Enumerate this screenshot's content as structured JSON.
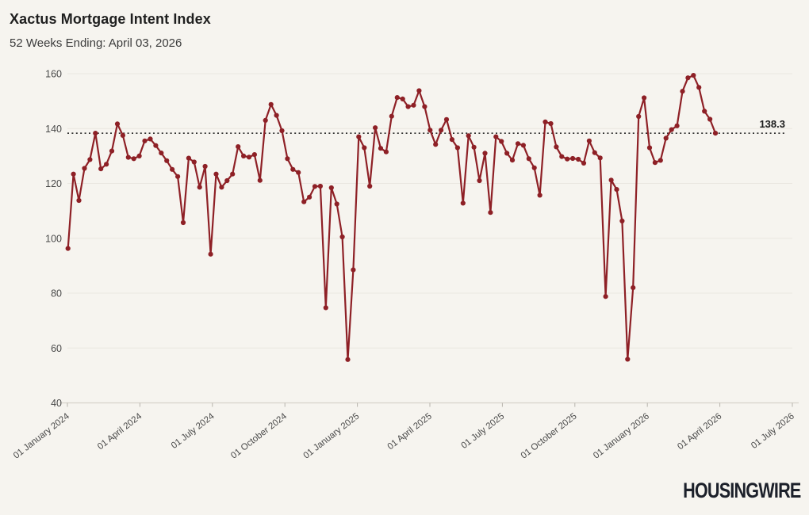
{
  "header": {
    "title": "Xactus Mortgage Intent Index",
    "subtitle": "52 Weeks Ending: April 03, 2026"
  },
  "footer": {
    "brand": "HOUSINGWIRE"
  },
  "chart_data": {
    "type": "line",
    "title": "Xactus Mortgage Intent Index",
    "subtitle": "52 Weeks Ending: April 03, 2026",
    "frequency": "weekly",
    "start_date": "01 January 2024",
    "end_date": "03 April 2026",
    "values": [
      96.3,
      123.4,
      113.8,
      125.5,
      128.7,
      138.3,
      125.3,
      127.0,
      131.8,
      141.7,
      137.5,
      129.5,
      129.0,
      130.0,
      135.5,
      136.2,
      133.8,
      131.1,
      128.3,
      125.1,
      122.5,
      105.7,
      129.2,
      127.8,
      118.6,
      126.2,
      94.2,
      123.4,
      118.6,
      121.0,
      123.4,
      133.4,
      130.0,
      129.6,
      130.5,
      121.1,
      143.0,
      148.8,
      144.8,
      139.2,
      129.0,
      125.1,
      124.0,
      113.3,
      115.0,
      118.9,
      119.0,
      74.7,
      118.4,
      112.5,
      100.5,
      55.8,
      88.5,
      137.0,
      133.0,
      119.0,
      140.3,
      132.8,
      131.5,
      144.5,
      151.3,
      150.8,
      148.0,
      148.5,
      153.8,
      148.0,
      139.4,
      134.2,
      139.4,
      143.3,
      136.0,
      133.0,
      112.8,
      137.4,
      133.2,
      121.0,
      131.0,
      109.4,
      137.0,
      135.3,
      131.0,
      128.5,
      134.5,
      133.9,
      129.0,
      125.7,
      115.7,
      142.4,
      141.8,
      133.3,
      129.8,
      128.9,
      129.1,
      128.8,
      127.4,
      135.5,
      131.2,
      129.3,
      78.8,
      121.2,
      117.8,
      106.3,
      55.9,
      82.0,
      144.4,
      151.2,
      133.0,
      127.6,
      128.4,
      136.5,
      139.6,
      141.0,
      153.6,
      158.5,
      159.4,
      155.0,
      146.3,
      143.4,
      138.3
    ],
    "ylim": [
      40,
      160
    ],
    "yticks": [
      40,
      60,
      80,
      100,
      120,
      140,
      160
    ],
    "xticks": [
      "01 January 2024",
      "01 April 2024",
      "01 July 2024",
      "01 October 2024",
      "01 January 2025",
      "01 April 2025",
      "01 July 2025",
      "01 October 2025",
      "01 January 2026",
      "01 April 2026",
      "01 July 2026"
    ],
    "reference_line": {
      "value": 138.3,
      "label": "138.3"
    },
    "line_color": "#8e2026",
    "marker_color": "#8e2026",
    "reference_color": "#1a1a1a",
    "grid_color": "#eae7e0",
    "axis_color": "#d6d2cb",
    "tick_text_color": "#4a4a4a",
    "background_color": "#f6f4ef",
    "grid": true,
    "markers": true,
    "legend": "none"
  }
}
